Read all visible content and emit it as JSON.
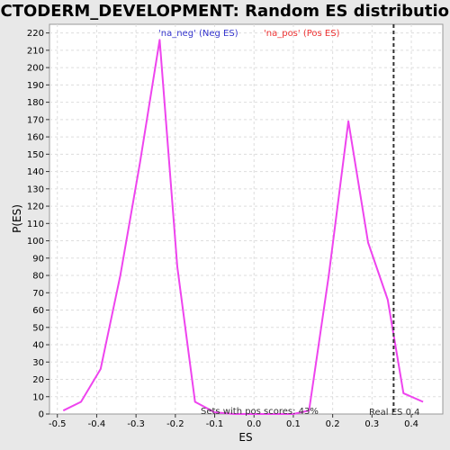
{
  "chart_data": {
    "type": "line",
    "title": "ECTODERM_DEVELOPMENT: Random ES distribution",
    "xlabel": "ES",
    "ylabel": "P(ES)",
    "xlim": [
      -0.52,
      0.48
    ],
    "ylim": [
      0,
      225
    ],
    "x_ticks": [
      -0.5,
      -0.4,
      -0.3,
      -0.2,
      -0.1,
      0.0,
      0.1,
      0.2,
      0.3,
      0.4
    ],
    "x_tick_labels": [
      "-0.5",
      "-0.4",
      "-0.3",
      "-0.2",
      "-0.1",
      "0.0",
      "0.1",
      "0.2",
      "0.3",
      "0.4"
    ],
    "y_ticks": [
      0,
      10,
      20,
      30,
      40,
      50,
      60,
      70,
      80,
      90,
      100,
      110,
      120,
      130,
      140,
      150,
      160,
      170,
      180,
      190,
      200,
      210,
      220
    ],
    "grid": true,
    "series": [
      {
        "color": "#ee44ee",
        "x": [
          -0.485,
          -0.44,
          -0.39,
          -0.34,
          -0.29,
          -0.24,
          -0.195,
          -0.15,
          -0.1,
          -0.05,
          0.0,
          0.05,
          0.1,
          0.14,
          0.19,
          0.24,
          0.29,
          0.34,
          0.38,
          0.43
        ],
        "y": [
          2,
          7,
          26,
          80,
          145,
          216,
          85,
          7,
          1,
          0,
          0,
          0,
          0,
          2,
          80,
          169,
          99,
          66,
          12,
          7
        ]
      }
    ],
    "vline": {
      "x": 0.355,
      "style": "dashed",
      "color": "#333333"
    },
    "legend": [
      {
        "text": "'na_neg' (Neg ES)",
        "color": "#3333cc"
      },
      {
        "text": "'na_pos' (Pos ES)",
        "color": "#ee3333"
      }
    ],
    "annotations": {
      "pos_scores": "Sets with pos scores: 43%",
      "real_es": "Real ES 0.4"
    }
  }
}
